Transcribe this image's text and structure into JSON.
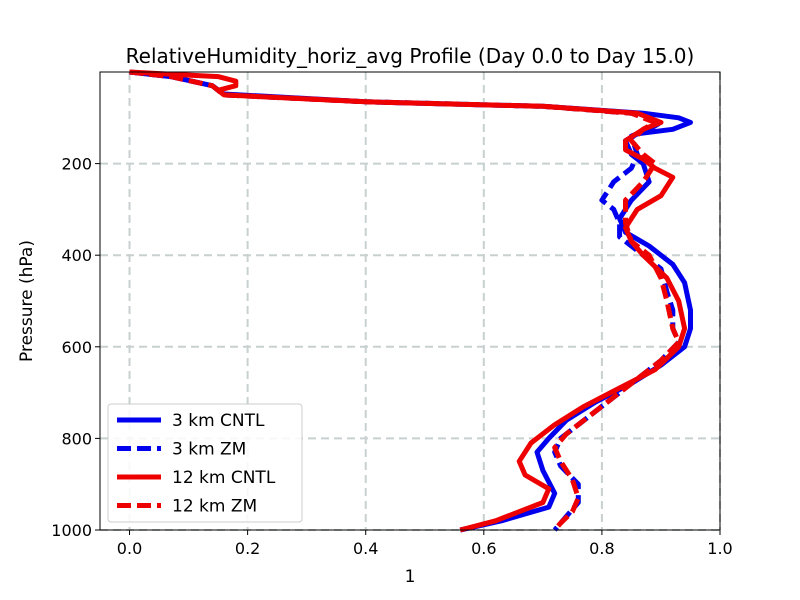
{
  "chart_data": {
    "type": "line",
    "title": "RelativeHumidity_horiz_avg Profile (Day 0.0 to Day 15.0)",
    "xlabel": "1",
    "ylabel": "Pressure (hPa)",
    "xlim": [
      -0.05,
      1.0
    ],
    "ylim": [
      1000,
      0
    ],
    "y_inverted": true,
    "grid": true,
    "legend_position": "lower-left",
    "xticks": [
      0.0,
      0.2,
      0.4,
      0.6,
      0.8,
      1.0
    ],
    "xtick_labels": [
      "0.0",
      "0.2",
      "0.4",
      "0.6",
      "0.8",
      "1.0"
    ],
    "yticks": [
      200,
      400,
      600,
      800,
      1000
    ],
    "ytick_labels": [
      "200",
      "400",
      "600",
      "800",
      "1000"
    ],
    "series": [
      {
        "name": "3 km CNTL",
        "color": "#0000ee",
        "style": "solid",
        "points": [
          [
            0.0,
            0
          ],
          [
            0.07,
            10
          ],
          [
            0.14,
            30
          ],
          [
            0.16,
            48
          ],
          [
            0.4,
            65
          ],
          [
            0.7,
            75
          ],
          [
            0.87,
            90
          ],
          [
            0.93,
            100
          ],
          [
            0.95,
            110
          ],
          [
            0.92,
            125
          ],
          [
            0.86,
            135
          ],
          [
            0.84,
            150
          ],
          [
            0.85,
            180
          ],
          [
            0.87,
            200
          ],
          [
            0.88,
            240
          ],
          [
            0.85,
            280
          ],
          [
            0.83,
            320
          ],
          [
            0.84,
            350
          ],
          [
            0.88,
            380
          ],
          [
            0.92,
            420
          ],
          [
            0.94,
            460
          ],
          [
            0.95,
            520
          ],
          [
            0.95,
            560
          ],
          [
            0.94,
            600
          ],
          [
            0.9,
            640
          ],
          [
            0.85,
            680
          ],
          [
            0.79,
            720
          ],
          [
            0.74,
            760
          ],
          [
            0.71,
            800
          ],
          [
            0.69,
            830
          ],
          [
            0.7,
            870
          ],
          [
            0.72,
            920
          ],
          [
            0.71,
            950
          ],
          [
            0.63,
            980
          ],
          [
            0.56,
            1000
          ]
        ]
      },
      {
        "name": "3 km ZM",
        "color": "#0000ee",
        "style": "dashed",
        "points": [
          [
            0.0,
            0
          ],
          [
            0.07,
            10
          ],
          [
            0.14,
            30
          ],
          [
            0.16,
            50
          ],
          [
            0.4,
            65
          ],
          [
            0.7,
            75
          ],
          [
            0.85,
            90
          ],
          [
            0.9,
            110
          ],
          [
            0.88,
            125
          ],
          [
            0.85,
            140
          ],
          [
            0.86,
            180
          ],
          [
            0.85,
            210
          ],
          [
            0.82,
            240
          ],
          [
            0.8,
            280
          ],
          [
            0.82,
            300
          ],
          [
            0.83,
            330
          ],
          [
            0.83,
            360
          ],
          [
            0.86,
            390
          ],
          [
            0.9,
            430
          ],
          [
            0.91,
            480
          ],
          [
            0.92,
            520
          ],
          [
            0.92,
            560
          ],
          [
            0.93,
            590
          ],
          [
            0.9,
            630
          ],
          [
            0.85,
            680
          ],
          [
            0.81,
            720
          ],
          [
            0.77,
            760
          ],
          [
            0.73,
            800
          ],
          [
            0.72,
            830
          ],
          [
            0.73,
            860
          ],
          [
            0.76,
            900
          ],
          [
            0.76,
            940
          ],
          [
            0.74,
            970
          ],
          [
            0.72,
            1000
          ]
        ]
      },
      {
        "name": "12 km CNTL",
        "color": "#ee0000",
        "style": "solid",
        "points": [
          [
            0.0,
            0
          ],
          [
            0.07,
            5
          ],
          [
            0.15,
            10
          ],
          [
            0.18,
            20
          ],
          [
            0.18,
            30
          ],
          [
            0.15,
            40
          ],
          [
            0.16,
            50
          ],
          [
            0.4,
            65
          ],
          [
            0.7,
            75
          ],
          [
            0.86,
            90
          ],
          [
            0.9,
            110
          ],
          [
            0.87,
            125
          ],
          [
            0.84,
            150
          ],
          [
            0.84,
            170
          ],
          [
            0.87,
            190
          ],
          [
            0.89,
            210
          ],
          [
            0.92,
            230
          ],
          [
            0.9,
            270
          ],
          [
            0.86,
            300
          ],
          [
            0.84,
            340
          ],
          [
            0.85,
            370
          ],
          [
            0.87,
            400
          ],
          [
            0.91,
            450
          ],
          [
            0.93,
            500
          ],
          [
            0.94,
            560
          ],
          [
            0.93,
            600
          ],
          [
            0.89,
            650
          ],
          [
            0.83,
            690
          ],
          [
            0.77,
            730
          ],
          [
            0.72,
            770
          ],
          [
            0.68,
            810
          ],
          [
            0.66,
            850
          ],
          [
            0.67,
            880
          ],
          [
            0.71,
            910
          ],
          [
            0.7,
            940
          ],
          [
            0.62,
            980
          ],
          [
            0.56,
            1000
          ]
        ]
      },
      {
        "name": "12 km ZM",
        "color": "#ee0000",
        "style": "dashed",
        "points": [
          [
            0.0,
            0
          ],
          [
            0.07,
            10
          ],
          [
            0.14,
            30
          ],
          [
            0.16,
            50
          ],
          [
            0.4,
            65
          ],
          [
            0.7,
            75
          ],
          [
            0.85,
            90
          ],
          [
            0.89,
            110
          ],
          [
            0.87,
            125
          ],
          [
            0.85,
            150
          ],
          [
            0.87,
            180
          ],
          [
            0.89,
            200
          ],
          [
            0.87,
            240
          ],
          [
            0.84,
            280
          ],
          [
            0.84,
            330
          ],
          [
            0.85,
            370
          ],
          [
            0.88,
            400
          ],
          [
            0.9,
            450
          ],
          [
            0.91,
            500
          ],
          [
            0.92,
            560
          ],
          [
            0.93,
            590
          ],
          [
            0.9,
            630
          ],
          [
            0.86,
            670
          ],
          [
            0.82,
            710
          ],
          [
            0.78,
            750
          ],
          [
            0.74,
            790
          ],
          [
            0.72,
            820
          ],
          [
            0.73,
            850
          ],
          [
            0.75,
            890
          ],
          [
            0.76,
            930
          ],
          [
            0.75,
            960
          ],
          [
            0.73,
            985
          ],
          [
            0.72,
            1000
          ]
        ]
      }
    ]
  }
}
